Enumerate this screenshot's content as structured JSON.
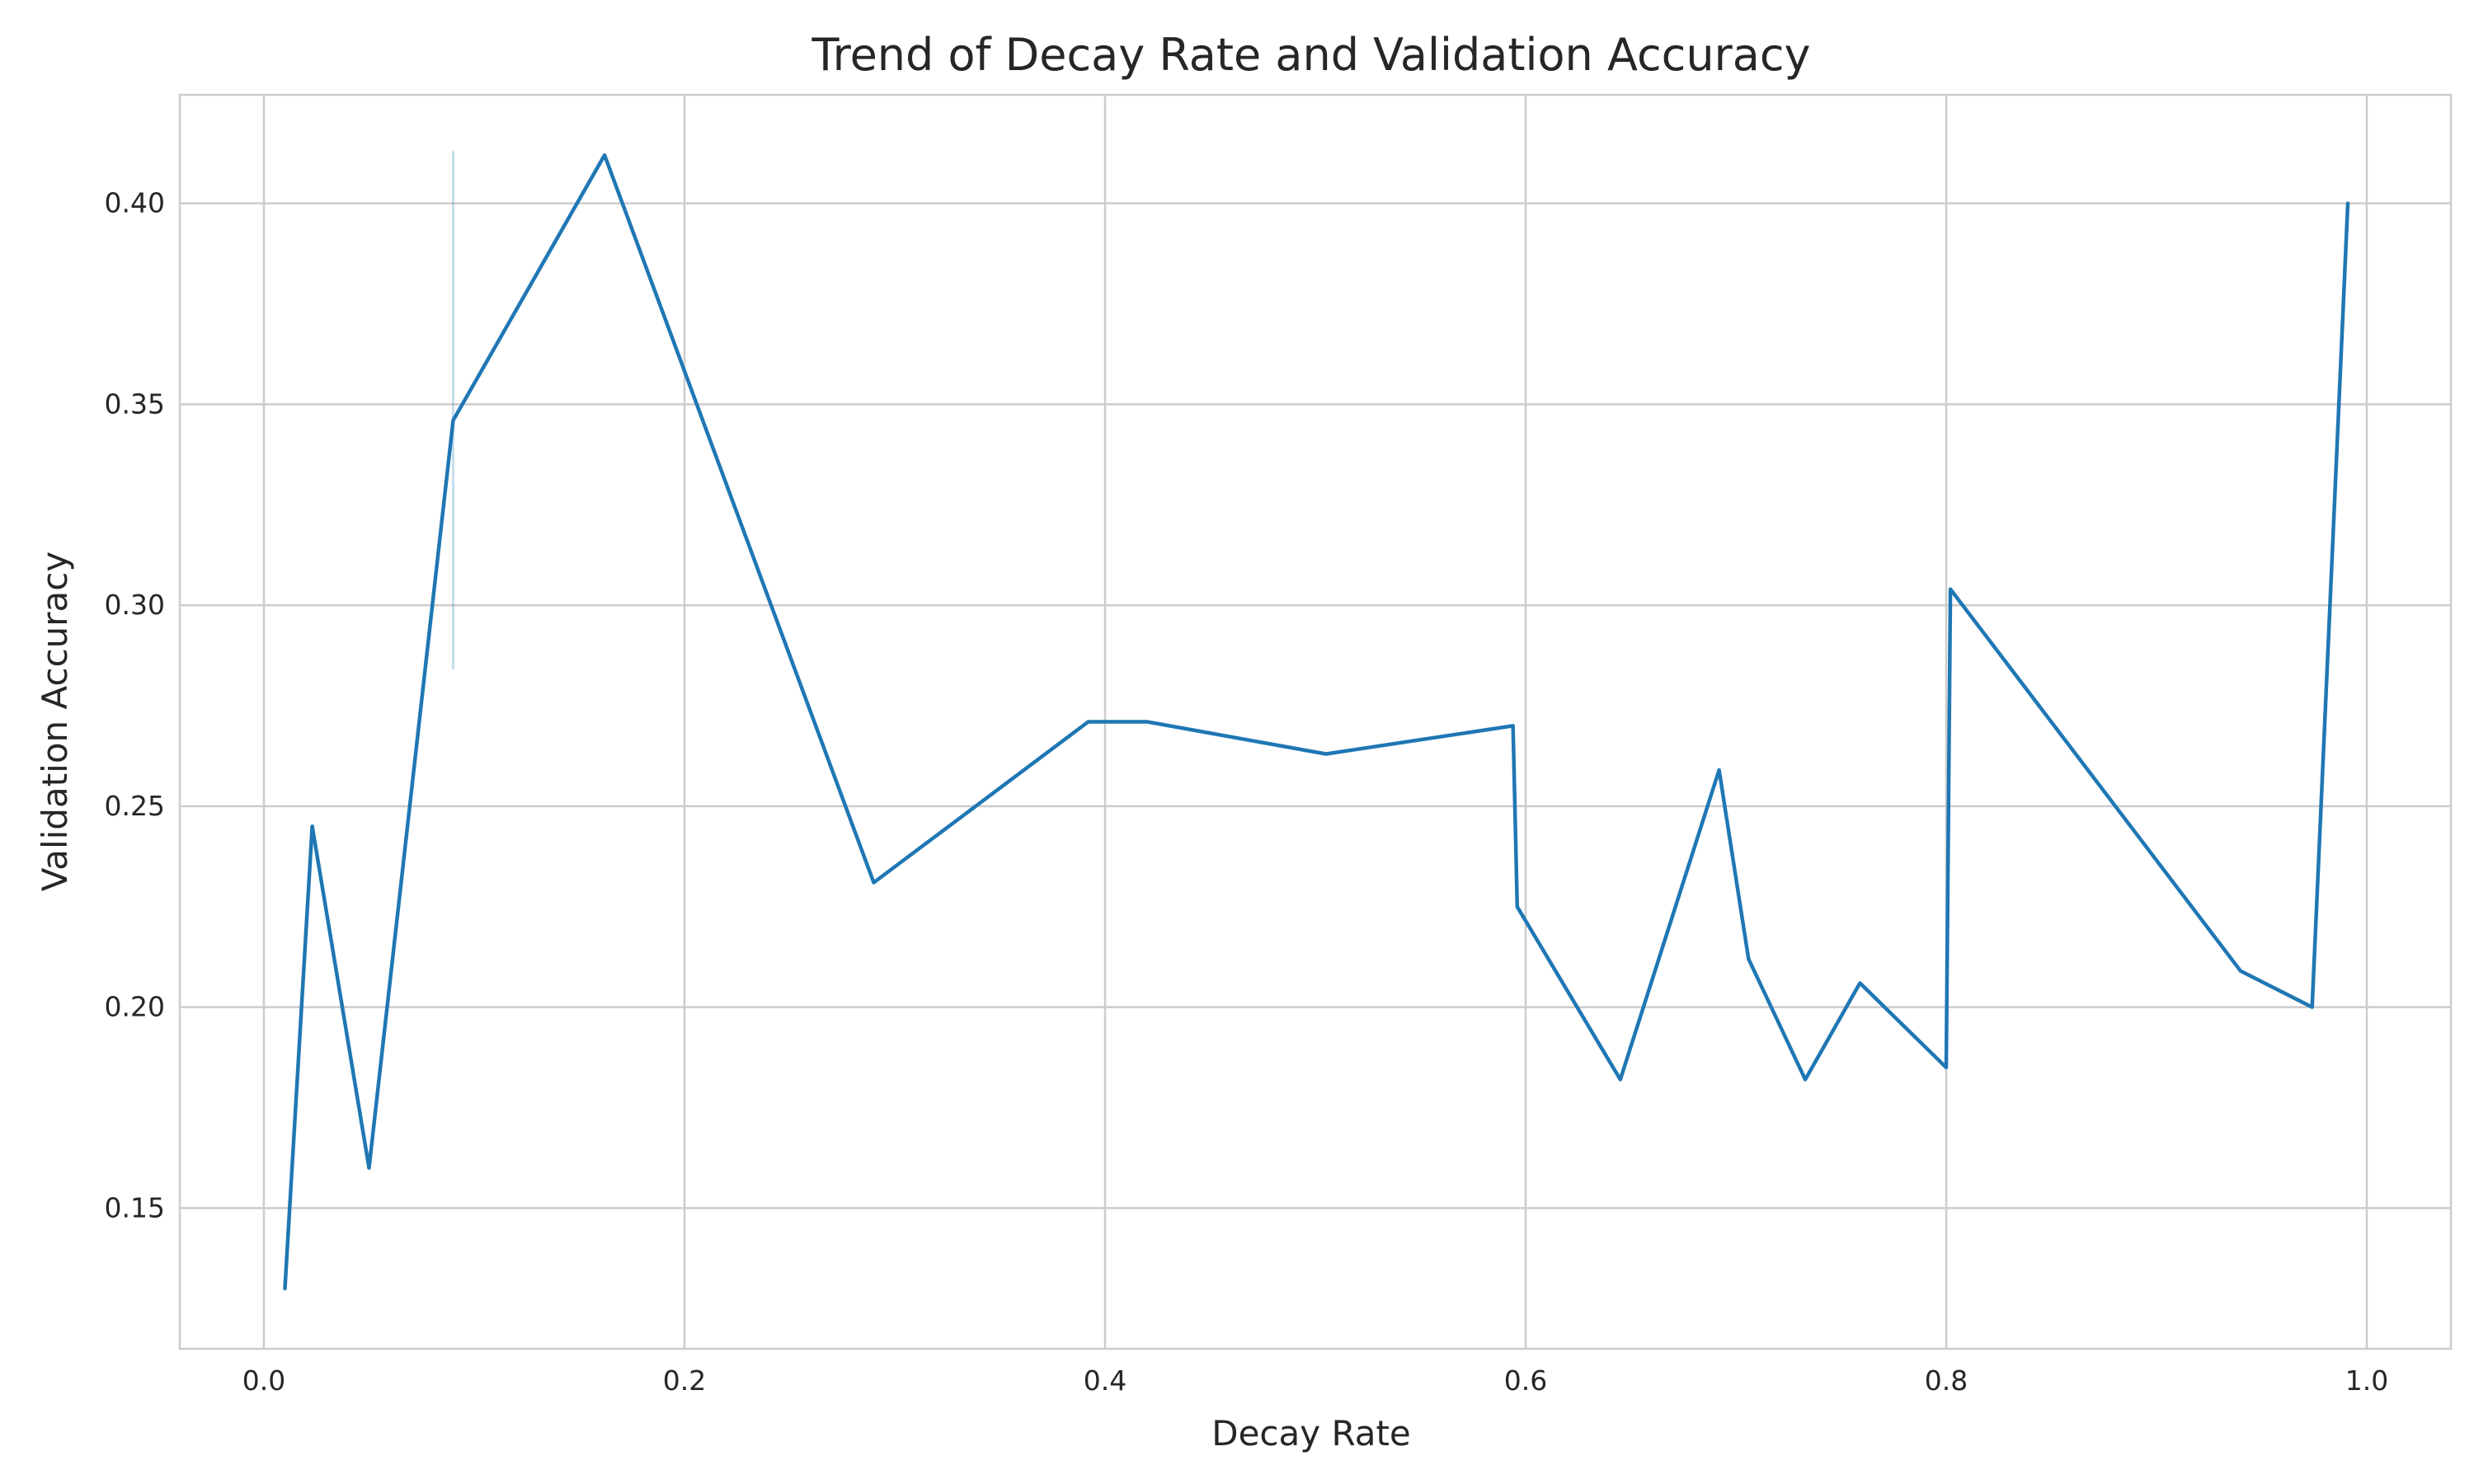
{
  "chart_data": {
    "type": "line",
    "title": "Trend of Decay Rate and Validation Accuracy",
    "xlabel": "Decay Rate",
    "ylabel": "Validation Accuracy",
    "xlim": [
      -0.04,
      1.04
    ],
    "ylim": [
      0.115,
      0.427
    ],
    "xticks": [
      0.0,
      0.2,
      0.4,
      0.6,
      0.8,
      1.0
    ],
    "xtick_labels": [
      "0.0",
      "0.2",
      "0.4",
      "0.6",
      "0.8",
      "1.0"
    ],
    "yticks": [
      0.15,
      0.2,
      0.25,
      0.3,
      0.35,
      0.4
    ],
    "ytick_labels": [
      "0.15",
      "0.20",
      "0.25",
      "0.30",
      "0.35",
      "0.40"
    ],
    "grid": true,
    "color": "#1f77b4",
    "series": [
      {
        "points": [
          {
            "x": 0.01,
            "y": 0.13
          },
          {
            "x": 0.023,
            "y": 0.245
          },
          {
            "x": 0.05,
            "y": 0.16
          },
          {
            "x": 0.09,
            "y": 0.346
          },
          {
            "x": 0.162,
            "y": 0.412
          },
          {
            "x": 0.29,
            "y": 0.231
          },
          {
            "x": 0.392,
            "y": 0.271
          },
          {
            "x": 0.42,
            "y": 0.271
          },
          {
            "x": 0.505,
            "y": 0.263
          },
          {
            "x": 0.594,
            "y": 0.27
          },
          {
            "x": 0.596,
            "y": 0.225
          },
          {
            "x": 0.645,
            "y": 0.182
          },
          {
            "x": 0.692,
            "y": 0.259
          },
          {
            "x": 0.706,
            "y": 0.212
          },
          {
            "x": 0.733,
            "y": 0.182
          },
          {
            "x": 0.759,
            "y": 0.206
          },
          {
            "x": 0.8,
            "y": 0.185
          },
          {
            "x": 0.802,
            "y": 0.304
          },
          {
            "x": 0.94,
            "y": 0.209
          },
          {
            "x": 0.974,
            "y": 0.2
          },
          {
            "x": 0.991,
            "y": 0.4
          }
        ]
      }
    ],
    "confidence_intervals": [
      {
        "x": 0.09,
        "y_low": 0.284,
        "y_high": 0.413
      }
    ]
  }
}
